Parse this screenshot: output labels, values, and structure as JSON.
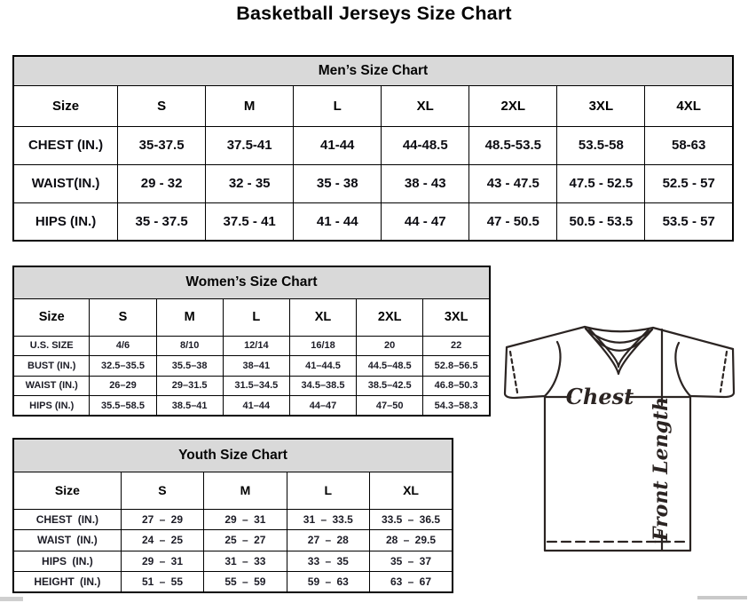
{
  "page": {
    "title": "Basketball Jerseys Size Chart"
  },
  "mens": {
    "title": "Men’s Size Chart",
    "header": [
      "Size",
      "S",
      "M",
      "L",
      "XL",
      "2XL",
      "3XL",
      "4XL"
    ],
    "rows": [
      {
        "label": "CHEST (IN.)",
        "values": [
          "35-37.5",
          "37.5-41",
          "41-44",
          "44-48.5",
          "48.5-53.5",
          "53.5-58",
          "58-63"
        ]
      },
      {
        "label": "WAIST(IN.)",
        "values": [
          "29 - 32",
          "32 - 35",
          "35 - 38",
          "38 - 43",
          "43 - 47.5",
          "47.5 - 52.5",
          "52.5 - 57"
        ]
      },
      {
        "label": "HIPS (IN.)",
        "values": [
          "35 - 37.5",
          "37.5 - 41",
          "41 - 44",
          "44 - 47",
          "47 - 50.5",
          "50.5 - 53.5",
          "53.5 - 57"
        ]
      }
    ]
  },
  "womens": {
    "title": "Women’s Size Chart",
    "header": [
      "Size",
      "S",
      "M",
      "L",
      "XL",
      "2XL",
      "3XL"
    ],
    "rows": [
      {
        "label": "U.S. SIZE",
        "values": [
          "4/6",
          "8/10",
          "12/14",
          "16/18",
          "20",
          "22"
        ]
      },
      {
        "label": "BUST (IN.)",
        "values": [
          "32.5–35.5",
          "35.5–38",
          "38–41",
          "41–44.5",
          "44.5–48.5",
          "52.8–56.5"
        ]
      },
      {
        "label": "WAIST (IN.)",
        "values": [
          "26–29",
          "29–31.5",
          "31.5–34.5",
          "34.5–38.5",
          "38.5–42.5",
          "46.8–50.3"
        ]
      },
      {
        "label": "HIPS (IN.)",
        "values": [
          "35.5–58.5",
          "38.5–41",
          "41–44",
          "44–47",
          "47–50",
          "54.3–58.3"
        ]
      }
    ]
  },
  "youth": {
    "title": "Youth Size Chart",
    "header": [
      "Size",
      "S",
      "M",
      "L",
      "XL"
    ],
    "rows": [
      {
        "label": "CHEST (IN.)",
        "values": [
          "27 – 29",
          "29 – 31",
          "31 – 33.5",
          "33.5 – 36.5"
        ]
      },
      {
        "label": "WAIST (IN.)",
        "values": [
          "24 – 25",
          "25 – 27",
          "27 – 28",
          "28 – 29.5"
        ]
      },
      {
        "label": "HIPS (IN.)",
        "values": [
          "29 – 31",
          "31 – 33",
          "33 – 35",
          "35 – 37"
        ]
      },
      {
        "label": "HEIGHT (IN.)",
        "values": [
          "51 – 55",
          "55 – 59",
          "59 – 63",
          "63 – 67"
        ]
      }
    ]
  },
  "diagram": {
    "chest_label": "Chest",
    "front_length_label": "Front Length"
  },
  "colors": {
    "header_band": "#d9d9d9",
    "table_border": "#000000",
    "jersey_outline": "#2b2422"
  }
}
